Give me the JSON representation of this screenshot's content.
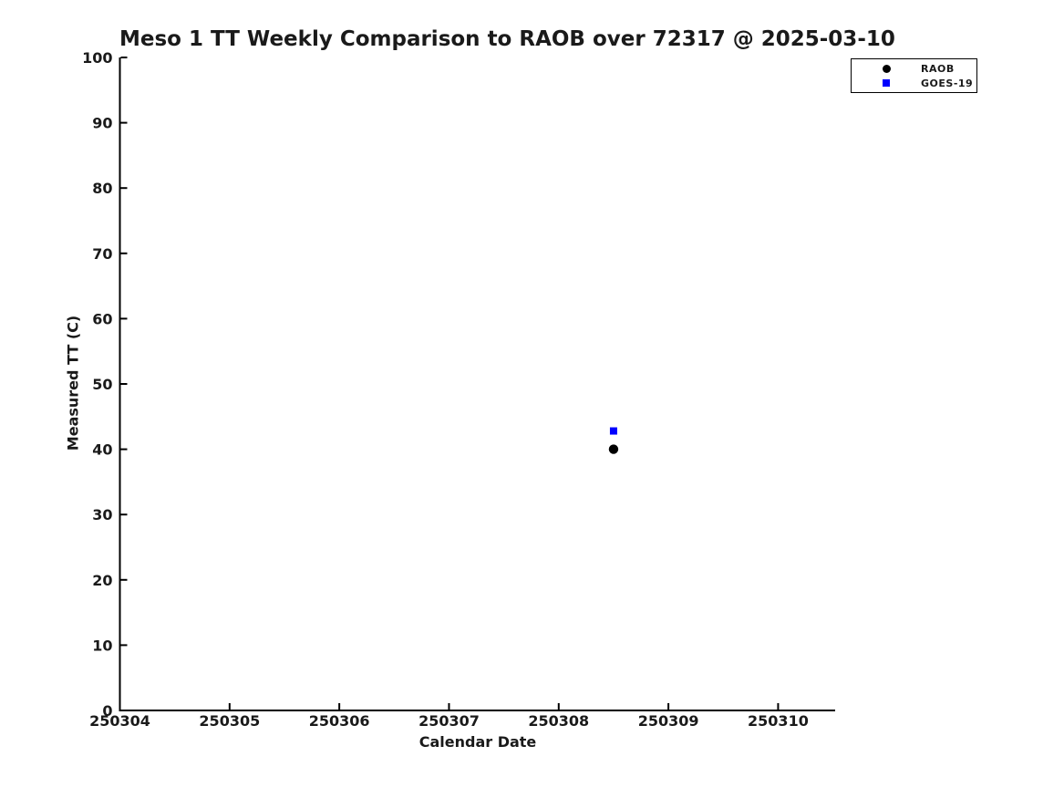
{
  "chart_data": {
    "type": "scatter",
    "title": "Meso 1 TT Weekly Comparison to RAOB over 72317 @ 2025-03-10",
    "xlabel": "Calendar Date",
    "ylabel": "Measured TT (C)",
    "xlim": [
      250304,
      250310.52
    ],
    "ylim": [
      0,
      100
    ],
    "xticks": [
      250304,
      250305,
      250306,
      250307,
      250308,
      250309,
      250310
    ],
    "yticks": [
      0,
      10,
      20,
      30,
      40,
      50,
      60,
      70,
      80,
      90,
      100
    ],
    "grid": false,
    "tick_direction": "in",
    "legend_position": "top-right",
    "axis_color": "#000000",
    "text_color": "#1a1a1a",
    "background_color": "#ffffff",
    "series": [
      {
        "name": "RAOB",
        "marker": "circle",
        "color": "#000000",
        "points": [
          {
            "x": 250308.5,
            "y": 40.0
          }
        ]
      },
      {
        "name": "GOES-19",
        "marker": "square",
        "color": "#0000ff",
        "points": [
          {
            "x": 250308.5,
            "y": 42.8
          }
        ]
      }
    ]
  }
}
